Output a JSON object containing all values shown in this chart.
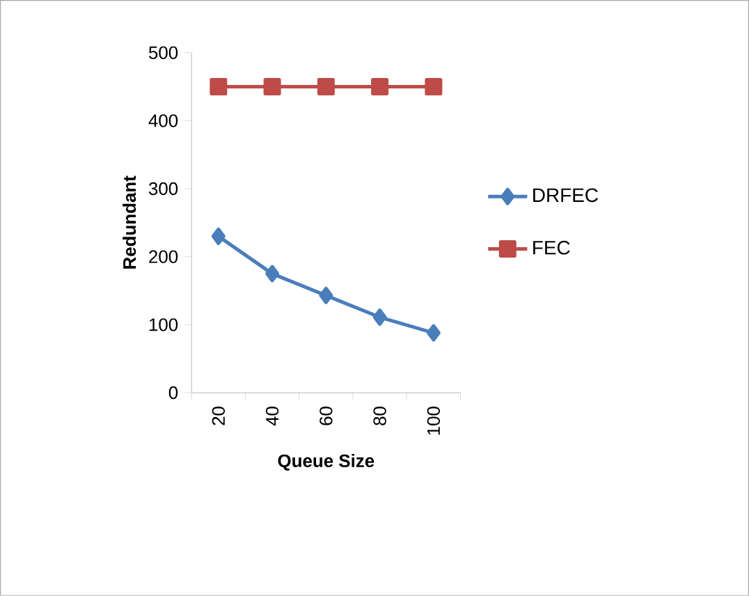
{
  "chart_data": {
    "type": "line",
    "xlabel": "Queue Size",
    "ylabel": "Redundant",
    "categories": [
      "20",
      "40",
      "60",
      "80",
      "100"
    ],
    "series": [
      {
        "name": "DRFEC",
        "color": "#4a7ebb",
        "marker": "diamond",
        "values": [
          230,
          175,
          143,
          111,
          88
        ]
      },
      {
        "name": "FEC",
        "color": "#be4b48",
        "marker": "square",
        "values": [
          450,
          450,
          450,
          450,
          450
        ]
      }
    ],
    "ylim": [
      0,
      500
    ],
    "yticks": [
      0,
      100,
      200,
      300,
      400,
      500
    ],
    "grid": false,
    "legend": "right"
  }
}
